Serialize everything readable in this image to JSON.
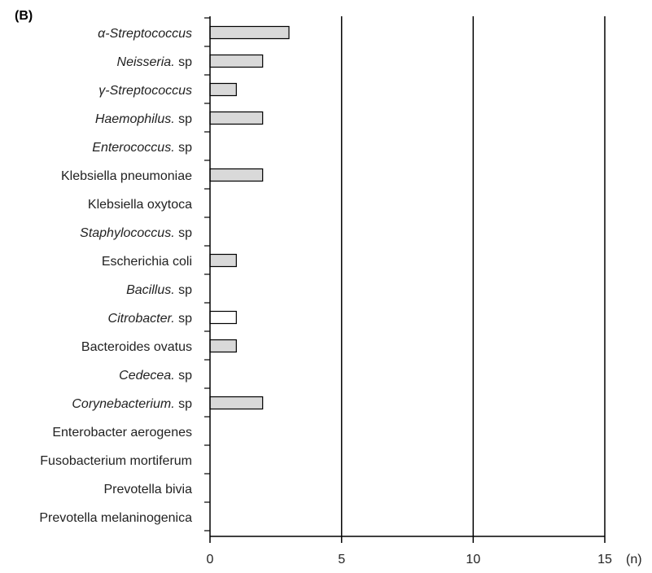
{
  "panel_label": "(B)",
  "chart_data": {
    "type": "bar",
    "orientation": "horizontal",
    "categories": [
      {
        "parts": [
          {
            "text": "α-Streptococcus",
            "italic": true
          }
        ]
      },
      {
        "parts": [
          {
            "text": "Neisseria.",
            "italic": true
          },
          {
            "text": " sp",
            "italic": false
          }
        ]
      },
      {
        "parts": [
          {
            "text": "γ-Streptococcus",
            "italic": true
          }
        ]
      },
      {
        "parts": [
          {
            "text": "Haemophilus.",
            "italic": true
          },
          {
            "text": " sp",
            "italic": false
          }
        ]
      },
      {
        "parts": [
          {
            "text": "Enterococcus.",
            "italic": true
          },
          {
            "text": " sp",
            "italic": false
          }
        ]
      },
      {
        "parts": [
          {
            "text": "Klebsiella pneumoniae",
            "italic": false
          }
        ]
      },
      {
        "parts": [
          {
            "text": "Klebsiella oxytoca",
            "italic": false
          }
        ]
      },
      {
        "parts": [
          {
            "text": "Staphylococcus.",
            "italic": true
          },
          {
            "text": " sp",
            "italic": false
          }
        ]
      },
      {
        "parts": [
          {
            "text": "Escherichia coli",
            "italic": false
          }
        ]
      },
      {
        "parts": [
          {
            "text": "Bacillus.",
            "italic": true
          },
          {
            "text": " sp",
            "italic": false
          }
        ]
      },
      {
        "parts": [
          {
            "text": "Citrobacter.",
            "italic": true
          },
          {
            "text": " sp",
            "italic": false
          }
        ]
      },
      {
        "parts": [
          {
            "text": "Bacteroides ovatus",
            "italic": false
          }
        ]
      },
      {
        "parts": [
          {
            "text": "Cedecea.",
            "italic": true
          },
          {
            "text": " sp",
            "italic": false
          }
        ]
      },
      {
        "parts": [
          {
            "text": "Corynebacterium.",
            "italic": true
          },
          {
            "text": " sp",
            "italic": false
          }
        ]
      },
      {
        "parts": [
          {
            "text": "Enterobacter aerogenes",
            "italic": false
          }
        ]
      },
      {
        "parts": [
          {
            "text": "Fusobacterium mortiferum",
            "italic": false
          }
        ]
      },
      {
        "parts": [
          {
            "text": "Prevotella bivia",
            "italic": false
          }
        ]
      },
      {
        "parts": [
          {
            "text": "Prevotella melaninogenica",
            "italic": false
          }
        ]
      }
    ],
    "values": [
      3,
      2,
      1,
      2,
      0,
      2,
      0,
      0,
      1,
      0,
      1,
      1,
      0,
      2,
      0,
      0,
      0,
      0
    ],
    "bar_fills": [
      "#d9d9d9",
      "#d9d9d9",
      "#d9d9d9",
      "#d9d9d9",
      "#d9d9d9",
      "#d9d9d9",
      "#d9d9d9",
      "#d9d9d9",
      "#d9d9d9",
      "#d9d9d9",
      "#ffffff",
      "#d9d9d9",
      "#d9d9d9",
      "#d9d9d9",
      "#d9d9d9",
      "#d9d9d9",
      "#d9d9d9",
      "#d9d9d9"
    ],
    "xticks": [
      0,
      5,
      10,
      15
    ],
    "xlim": [
      0,
      15
    ],
    "xlabel": "(n)",
    "ylabel": "",
    "title": "",
    "grid": "vertical lines at x ticks",
    "legend": "none",
    "colors": {
      "bar_default": "#d9d9d9",
      "bar_stroke": "#000000",
      "axis": "#000000"
    }
  }
}
